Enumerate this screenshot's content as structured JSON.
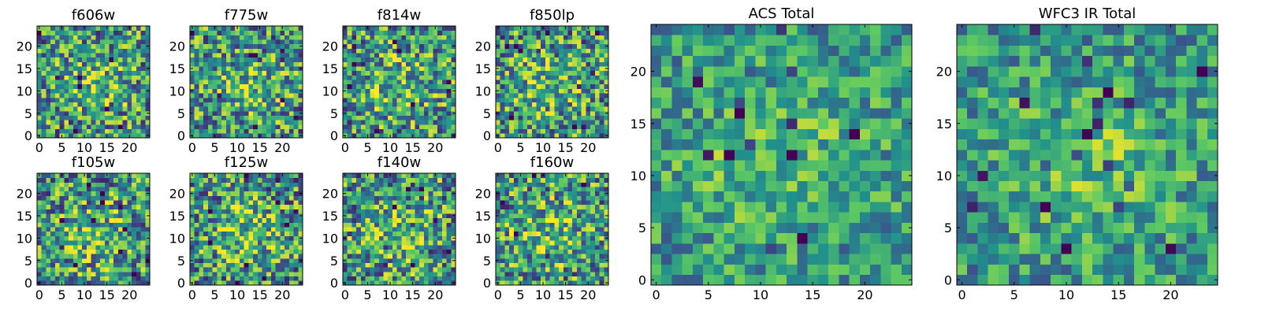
{
  "figure": {
    "colormap": "viridis",
    "colors": [
      "#440154",
      "#3b528b",
      "#21918c",
      "#5ec962",
      "#fde725"
    ]
  },
  "chart_data": [
    {
      "type": "heatmap",
      "title": "f606w",
      "grid": false,
      "xlim": [
        0,
        25
      ],
      "ylim": [
        0,
        25
      ],
      "xticks": [
        0,
        5,
        10,
        15,
        20
      ],
      "yticks": [
        0,
        5,
        10,
        15,
        20
      ]
    },
    {
      "type": "heatmap",
      "title": "f775w",
      "grid": false,
      "xlim": [
        0,
        25
      ],
      "ylim": [
        0,
        25
      ],
      "xticks": [
        0,
        5,
        10,
        15,
        20
      ],
      "yticks": [
        0,
        5,
        10,
        15,
        20
      ]
    },
    {
      "type": "heatmap",
      "title": "f814w",
      "grid": false,
      "xlim": [
        0,
        25
      ],
      "ylim": [
        0,
        25
      ],
      "xticks": [
        0,
        5,
        10,
        15,
        20
      ],
      "yticks": [
        0,
        5,
        10,
        15,
        20
      ]
    },
    {
      "type": "heatmap",
      "title": "f850lp",
      "grid": false,
      "xlim": [
        0,
        25
      ],
      "ylim": [
        0,
        25
      ],
      "xticks": [
        0,
        5,
        10,
        15,
        20
      ],
      "yticks": [
        0,
        5,
        10,
        15,
        20
      ]
    },
    {
      "type": "heatmap",
      "title": "f105w",
      "grid": false,
      "xlim": [
        0,
        25
      ],
      "ylim": [
        0,
        25
      ],
      "xticks": [
        0,
        5,
        10,
        15,
        20
      ],
      "yticks": [
        0,
        5,
        10,
        15,
        20
      ]
    },
    {
      "type": "heatmap",
      "title": "f125w",
      "grid": false,
      "xlim": [
        0,
        25
      ],
      "ylim": [
        0,
        25
      ],
      "xticks": [
        0,
        5,
        10,
        15,
        20
      ],
      "yticks": [
        0,
        5,
        10,
        15,
        20
      ]
    },
    {
      "type": "heatmap",
      "title": "f140w",
      "grid": false,
      "xlim": [
        0,
        25
      ],
      "ylim": [
        0,
        25
      ],
      "xticks": [
        0,
        5,
        10,
        15,
        20
      ],
      "yticks": [
        0,
        5,
        10,
        15,
        20
      ]
    },
    {
      "type": "heatmap",
      "title": "f160w",
      "grid": false,
      "xlim": [
        0,
        25
      ],
      "ylim": [
        0,
        25
      ],
      "xticks": [
        0,
        5,
        10,
        15,
        20
      ],
      "yticks": [
        0,
        5,
        10,
        15,
        20
      ]
    },
    {
      "type": "heatmap",
      "title": "ACS Total",
      "grid": false,
      "xlim": [
        0,
        25
      ],
      "ylim": [
        0,
        25
      ],
      "xticks": [
        0,
        5,
        10,
        15,
        20
      ],
      "yticks": [
        0,
        5,
        10,
        15,
        20
      ]
    },
    {
      "type": "heatmap",
      "title": "WFC3 IR Total",
      "grid": false,
      "xlim": [
        0,
        25
      ],
      "ylim": [
        0,
        25
      ],
      "xticks": [
        0,
        5,
        10,
        15,
        20
      ],
      "yticks": [
        0,
        5,
        10,
        15,
        20
      ]
    }
  ]
}
